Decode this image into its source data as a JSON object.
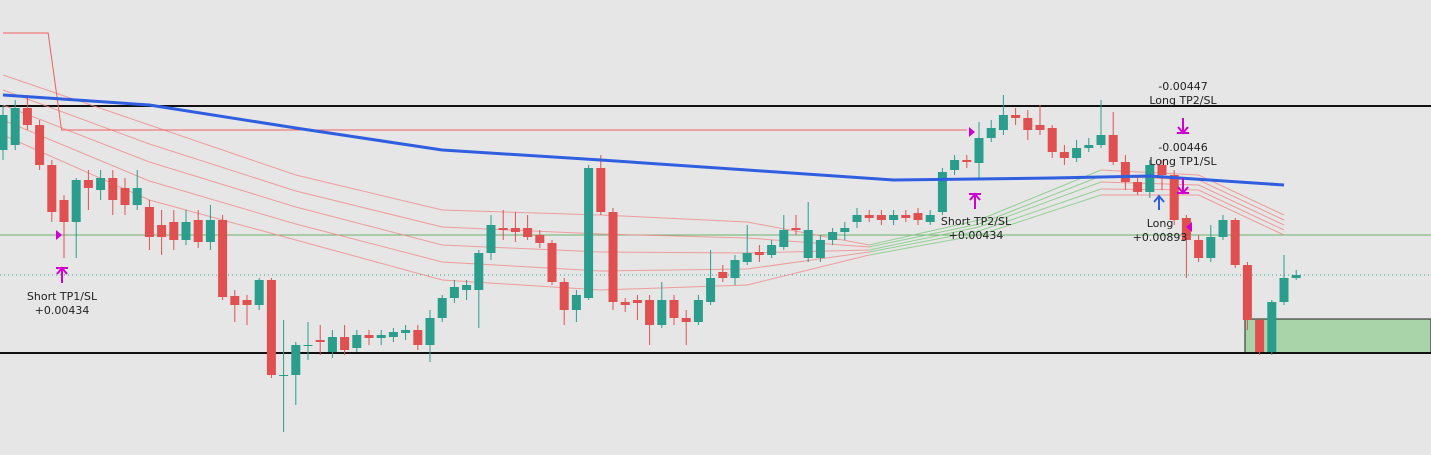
{
  "chart_data": {
    "type": "candlestick",
    "ylim": [
      0,
      455
    ],
    "xlim": [
      0,
      106
    ],
    "up_color": "#2a9d8c",
    "down_color": "#e05050",
    "open": [
      305,
      310,
      347,
      330,
      290,
      255,
      233,
      275,
      265,
      277,
      267,
      250,
      248,
      230,
      233,
      215,
      235,
      213,
      235,
      159,
      155,
      150,
      175,
      80,
      80,
      110,
      115,
      103,
      118,
      107,
      120,
      117,
      118,
      122,
      125,
      110,
      137,
      157,
      165,
      165,
      202,
      227,
      227,
      227,
      220,
      212,
      173,
      145,
      157,
      287,
      243,
      153,
      155,
      155,
      130,
      155,
      137,
      133,
      153,
      183,
      177,
      193,
      203,
      200,
      208,
      227,
      197,
      197,
      215,
      223,
      233,
      240,
      240,
      235,
      240,
      242,
      233,
      243,
      285,
      295,
      292,
      317,
      325,
      340,
      337,
      330,
      327,
      303,
      297,
      307,
      310,
      320,
      293,
      273,
      263,
      290,
      280,
      237,
      215,
      197,
      218,
      235,
      190,
      135,
      103,
      153,
      177
    ],
    "high": [
      350,
      355,
      360,
      335,
      295,
      260,
      277,
      285,
      285,
      285,
      277,
      285,
      255,
      245,
      245,
      245,
      245,
      250,
      240,
      165,
      160,
      177,
      177,
      135,
      113,
      133,
      130,
      125,
      130,
      125,
      125,
      125,
      127,
      130,
      130,
      145,
      160,
      175,
      175,
      205,
      240,
      245,
      243,
      240,
      225,
      215,
      177,
      165,
      290,
      300,
      247,
      157,
      160,
      160,
      173,
      160,
      145,
      160,
      205,
      190,
      200,
      230,
      210,
      215,
      240,
      240,
      253,
      220,
      227,
      233,
      247,
      245,
      245,
      245,
      245,
      247,
      245,
      287,
      300,
      300,
      333,
      335,
      360,
      347,
      345,
      350,
      330,
      310,
      315,
      317,
      355,
      343,
      300,
      280,
      295,
      295,
      285,
      240,
      220,
      230,
      240,
      237,
      193,
      137,
      155,
      200,
      185
    ],
    "low": [
      295,
      305,
      325,
      285,
      233,
      197,
      197,
      245,
      255,
      240,
      240,
      245,
      205,
      200,
      205,
      210,
      207,
      205,
      155,
      133,
      130,
      145,
      77,
      23,
      50,
      95,
      100,
      97,
      100,
      103,
      110,
      110,
      113,
      115,
      105,
      93,
      133,
      152,
      155,
      127,
      195,
      215,
      213,
      215,
      207,
      170,
      130,
      133,
      155,
      240,
      145,
      143,
      135,
      110,
      127,
      130,
      110,
      130,
      150,
      173,
      170,
      190,
      193,
      197,
      205,
      220,
      193,
      193,
      210,
      215,
      227,
      233,
      230,
      230,
      233,
      230,
      230,
      240,
      280,
      287,
      275,
      313,
      320,
      330,
      315,
      320,
      297,
      290,
      293,
      303,
      307,
      290,
      265,
      260,
      257,
      265,
      230,
      177,
      193,
      193,
      215,
      187,
      125,
      100,
      100,
      150,
      175
    ],
    "close": [
      340,
      347,
      330,
      290,
      243,
      233,
      275,
      267,
      277,
      255,
      250,
      267,
      218,
      218,
      215,
      233,
      213,
      235,
      158,
      150,
      150,
      175,
      80,
      80,
      110,
      110,
      113,
      118,
      105,
      120,
      117,
      120,
      123,
      125,
      110,
      137,
      157,
      168,
      170,
      202,
      230,
      225,
      223,
      218,
      212,
      173,
      145,
      160,
      287,
      243,
      153,
      150,
      152,
      130,
      155,
      137,
      133,
      155,
      177,
      177,
      195,
      202,
      200,
      210,
      225,
      225,
      225,
      215,
      223,
      227,
      240,
      237,
      235,
      240,
      237,
      235,
      240,
      283,
      295,
      293,
      317,
      327,
      340,
      337,
      325,
      325,
      303,
      297,
      307,
      310,
      320,
      293,
      273,
      263,
      290,
      280,
      235,
      215,
      197,
      218,
      235,
      190,
      135,
      103,
      153,
      177,
      180
    ],
    "ma": {
      "color": "#2f5fe0",
      "x": [
        0,
        12,
        24,
        36,
        49,
        61,
        73,
        86,
        94,
        105
      ],
      "values": [
        360,
        350,
        327,
        305,
        295,
        285,
        275,
        277,
        279,
        270
      ]
    },
    "stop_line": {
      "color": "#f06060",
      "x": [
        0,
        3.7,
        4.8,
        79
      ],
      "values": [
        422,
        422,
        325,
        325
      ]
    },
    "ribbon_x": [
      0,
      12,
      24,
      36,
      49,
      61,
      71,
      80,
      90,
      98,
      105
    ],
    "ribbon_colors": [
      "#f08a8a",
      "#f08a8a",
      "#f08a8a",
      "#f08a8a",
      "#f08a8a",
      "#f08a8a",
      "#7fc97f",
      "#7fc97f",
      "#f08a8a",
      "#f08a8a"
    ],
    "ribbon": [
      [
        380,
        330,
        280,
        245,
        240,
        233,
        210,
        235,
        285,
        280,
        240
      ],
      [
        365,
        311,
        264,
        228,
        221,
        217,
        208,
        231,
        279,
        275,
        235
      ],
      [
        350,
        293,
        248,
        210,
        203,
        202,
        205,
        228,
        273,
        270,
        230
      ],
      [
        335,
        274,
        231,
        193,
        184,
        186,
        203,
        224,
        266,
        265,
        225
      ],
      [
        320,
        255,
        215,
        175,
        165,
        170,
        200,
        220,
        260,
        260,
        220
      ]
    ],
    "levels": [
      {
        "value": 349,
        "color": "#111111",
        "width": 2,
        "dash": "none"
      },
      {
        "value": 102,
        "color": "#111111",
        "width": 2,
        "dash": "none"
      },
      {
        "value": 220,
        "color": "#6ab06a",
        "width": 1,
        "dash": "none"
      },
      {
        "value": 180,
        "color": "#2a9d8c",
        "width": 1,
        "dash": "1 3"
      }
    ],
    "annotations": {
      "short_tp1": "Short TP1/SL",
      "short_tp1_value": "+0.00434",
      "short_tp2": "Short TP2/SL",
      "short_tp2_value": "+0.00434",
      "long_tp2_value": "-0.00447",
      "long_tp2": "Long TP2/SL",
      "long_tp1_value": "-0.00446",
      "long_tp1": "Long TP1/SL",
      "long": "Long",
      "long_value": "+0.00893"
    }
  }
}
